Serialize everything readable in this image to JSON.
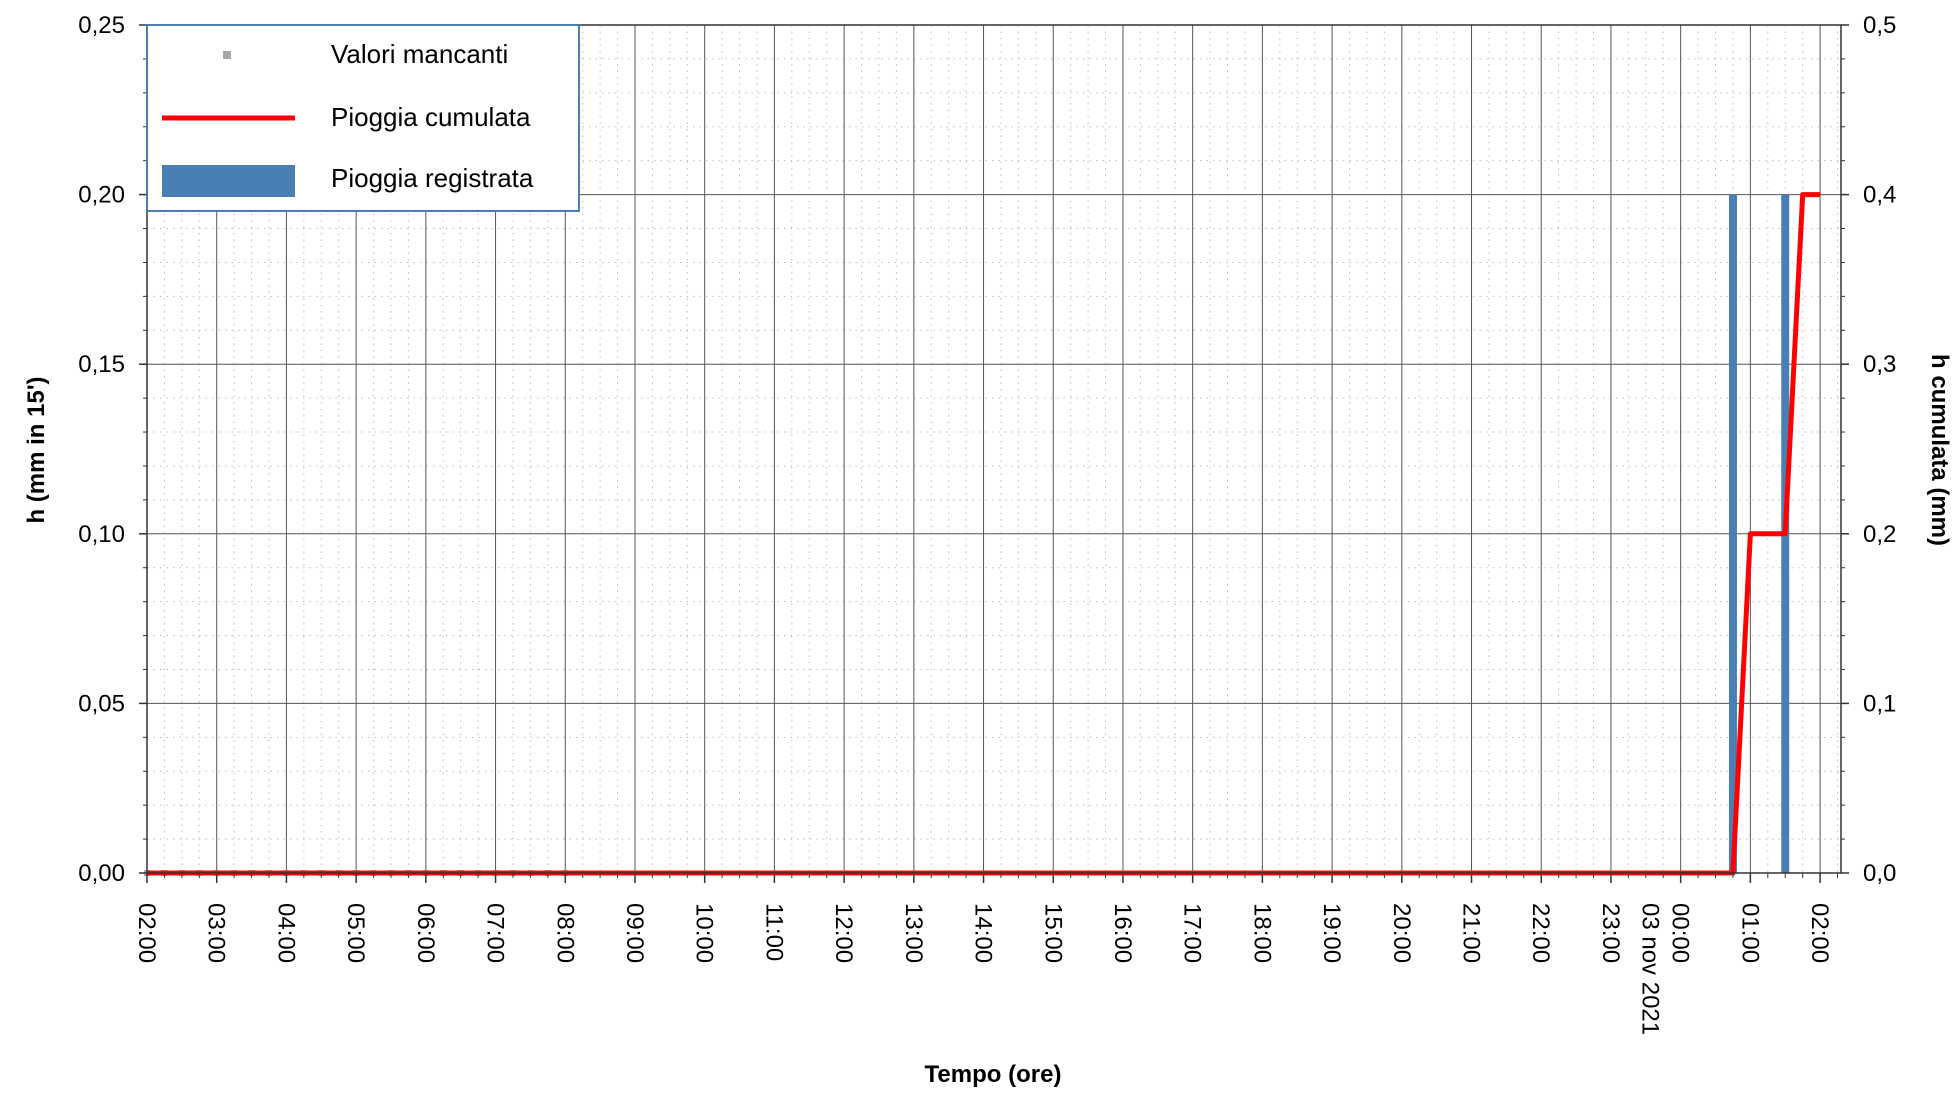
{
  "chart_data": {
    "type": "bar+line",
    "title": "",
    "xlabel": "Tempo (ore)",
    "ylabel_left": "h (mm in 15')",
    "ylabel_right": "h cumulata (mm)",
    "ylim_left": [
      0,
      0.25
    ],
    "ylim_right": [
      0,
      0.5
    ],
    "yticks_left": [
      "0,00",
      "0,05",
      "0,10",
      "0,15",
      "0,20",
      "0,25"
    ],
    "yticks_right": [
      "0,0",
      "0,1",
      "0,2",
      "0,3",
      "0,4",
      "0,5"
    ],
    "x_unit": "hours since 02:00 (02 nov 2021)",
    "xlim": [
      0,
      24.3
    ],
    "xticks": [
      "02:00",
      "03:00",
      "04:00",
      "05:00",
      "06:00",
      "07:00",
      "08:00",
      "09:00",
      "10:00",
      "11:00",
      "12:00",
      "13:00",
      "14:00",
      "15:00",
      "16:00",
      "17:00",
      "18:00",
      "19:00",
      "20:00",
      "21:00",
      "22:00",
      "23:00",
      "00:00",
      "01:00",
      "02:00"
    ],
    "date_label": "03 nov 2021",
    "grid": true,
    "legend": {
      "position": "top-left",
      "entries": [
        {
          "label": "Valori mancanti",
          "symbol": "square",
          "color": "#a6a6a6"
        },
        {
          "label": "Pioggia cumulata",
          "symbol": "line",
          "color": "#ff0000"
        },
        {
          "label": "Pioggia registrata",
          "symbol": "bar",
          "color": "#4a7fb5"
        }
      ]
    },
    "series": [
      {
        "name": "Valori mancanti",
        "kind": "dots",
        "axis": "left",
        "color": "#a6a6a6",
        "x_range": [
          0,
          6
        ],
        "value": 0
      },
      {
        "name": "Pioggia registrata",
        "kind": "bar",
        "axis": "left",
        "color": "#4a7fb5",
        "points": [
          {
            "x": "00:45 03 nov",
            "value": 0.2
          },
          {
            "x": "01:30 03 nov",
            "value": 0.2
          }
        ]
      },
      {
        "name": "Pioggia cumulata",
        "kind": "line",
        "axis": "right",
        "color": "#ff0000",
        "points": [
          {
            "x": "02:00",
            "value": 0.0
          },
          {
            "x": "00:45 03 nov",
            "value": 0.0
          },
          {
            "x": "01:00 03 nov",
            "value": 0.2
          },
          {
            "x": "01:30 03 nov",
            "value": 0.2
          },
          {
            "x": "01:45 03 nov",
            "value": 0.4
          },
          {
            "x": "02:00 03 nov",
            "value": 0.4
          }
        ]
      }
    ]
  }
}
